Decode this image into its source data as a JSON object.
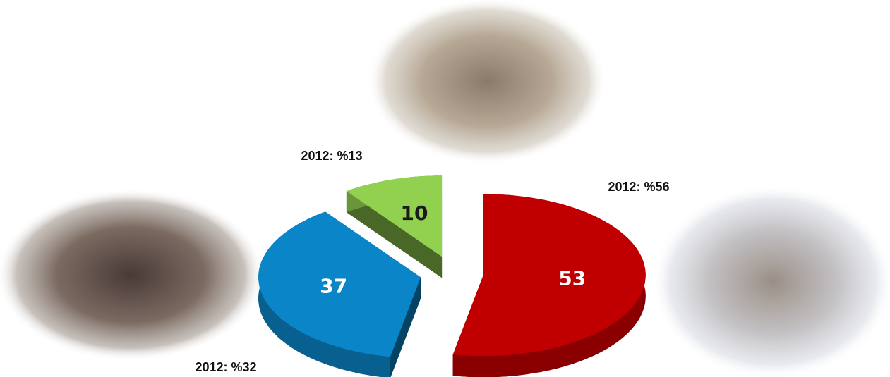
{
  "chart_data": {
    "type": "pie",
    "series": [
      {
        "values": [
          53,
          37,
          10
        ],
        "colors": [
          "#c00000",
          "#0a86c8",
          "#92d050"
        ]
      }
    ],
    "annotations": [
      "2012: %13",
      "2012: %56",
      "2012: %32"
    ]
  }
}
